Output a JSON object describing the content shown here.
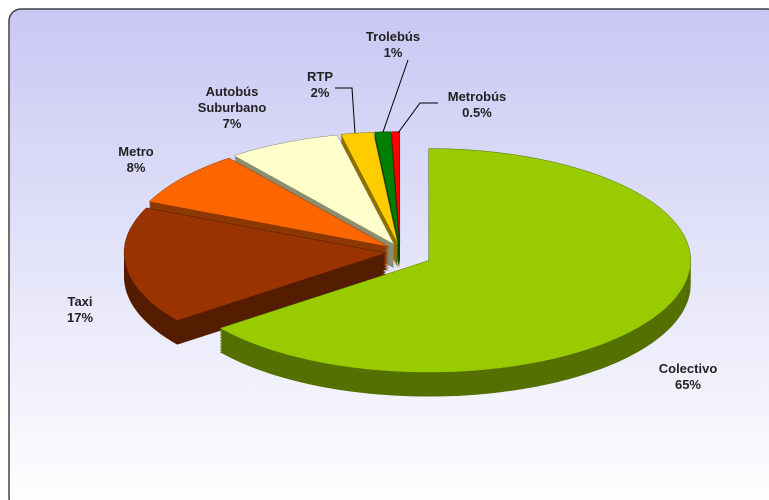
{
  "chart_data": {
    "type": "pie3d",
    "categories": [
      "Colectivo",
      "Taxi",
      "Metro",
      "Autobús Suburbano",
      "RTP",
      "Trolebús",
      "Metrobús"
    ],
    "values": [
      65,
      17,
      8,
      7,
      2,
      1,
      0.5
    ],
    "value_labels": [
      "65%",
      "17%",
      "8%",
      "7%",
      "2%",
      "1%",
      "0.5%"
    ],
    "colors": [
      "#99cc00",
      "#993300",
      "#ff6600",
      "#ffffcc",
      "#ffcc00",
      "#008000",
      "#ff0000"
    ]
  }
}
